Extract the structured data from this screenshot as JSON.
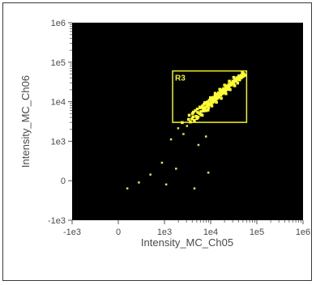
{
  "chart_data": {
    "type": "scatter",
    "title": "",
    "xlabel": "Intensity_MC_Ch05",
    "ylabel": "Intensity_MC_Ch06",
    "scale": "log",
    "x_range": [
      -1000,
      1000000
    ],
    "y_range": [
      -1000,
      1000000
    ],
    "x_ticks": [
      {
        "label": "-1e3",
        "value": -1000
      },
      {
        "label": "0",
        "value": 0
      },
      {
        "label": "1e3",
        "value": 1000
      },
      {
        "label": "1e4",
        "value": 10000
      },
      {
        "label": "1e5",
        "value": 100000
      },
      {
        "label": "1e6",
        "value": 1000000
      }
    ],
    "y_ticks": [
      {
        "label": "1e6",
        "value": 1000000
      },
      {
        "label": "1e5",
        "value": 100000
      },
      {
        "label": "1e4",
        "value": 10000
      },
      {
        "label": "1e3",
        "value": 1000
      },
      {
        "label": "0",
        "value": 0
      },
      {
        "label": "-1e3",
        "value": -1000
      }
    ],
    "colors": {
      "plot_background": "#000000",
      "points": "#ffff33",
      "outlier_points": "#d8e84a",
      "gate": "#f2f222"
    },
    "gate": {
      "name": "R3",
      "x": [
        1500,
        60000
      ],
      "y": [
        3000,
        60000
      ]
    },
    "points": [
      [
        200,
        -200
      ],
      [
        450,
        -50
      ],
      [
        700,
        150
      ],
      [
        950,
        450
      ],
      [
        1100,
        -100
      ],
      [
        1400,
        1100
      ],
      [
        1800,
        300
      ],
      [
        2000,
        2100
      ],
      [
        2400,
        3000
      ],
      [
        2600,
        1500
      ],
      [
        3100,
        2400
      ],
      [
        5500,
        900
      ],
      [
        8000,
        1300
      ],
      [
        4500,
        -200
      ],
      [
        9000,
        200
      ],
      [
        3300,
        3600
      ],
      [
        4100,
        4200
      ],
      [
        5200,
        5400
      ],
      [
        6100,
        5700
      ],
      [
        6800,
        6900
      ],
      [
        7600,
        7200
      ],
      [
        8400,
        8800
      ],
      [
        9100,
        8400
      ],
      [
        10000,
        9800
      ],
      [
        10800,
        11500
      ],
      [
        11900,
        11200
      ],
      [
        12700,
        13100
      ],
      [
        13900,
        12400
      ],
      [
        14800,
        15900
      ],
      [
        16000,
        15100
      ],
      [
        17200,
        17700
      ],
      [
        18300,
        16900
      ],
      [
        19500,
        19800
      ],
      [
        20600,
        19200
      ],
      [
        22000,
        22800
      ],
      [
        23400,
        21900
      ],
      [
        24800,
        24100
      ],
      [
        26300,
        27500
      ],
      [
        28100,
        26700
      ],
      [
        30000,
        30500
      ],
      [
        31500,
        29400
      ],
      [
        33500,
        34800
      ],
      [
        35700,
        33600
      ],
      [
        37900,
        38200
      ],
      [
        40200,
        41500
      ],
      [
        42800,
        40100
      ],
      [
        45500,
        46900
      ],
      [
        5000,
        3800
      ],
      [
        6500,
        4600
      ],
      [
        8700,
        6200
      ],
      [
        10500,
        7900
      ],
      [
        13200,
        9800
      ],
      [
        16800,
        12300
      ],
      [
        21200,
        16100
      ],
      [
        26100,
        20400
      ],
      [
        32800,
        25600
      ],
      [
        4200,
        5500
      ],
      [
        5800,
        7400
      ],
      [
        7400,
        9600
      ],
      [
        9800,
        12800
      ],
      [
        12400,
        16500
      ],
      [
        15600,
        20800
      ],
      [
        19800,
        26600
      ],
      [
        25100,
        33400
      ],
      [
        31200,
        41700
      ],
      [
        11200,
        10300
      ],
      [
        14600,
        13800
      ],
      [
        18900,
        18100
      ],
      [
        24200,
        23600
      ],
      [
        29400,
        28900
      ],
      [
        36100,
        36000
      ],
      [
        44300,
        44800
      ],
      [
        52000,
        51500
      ],
      [
        48000,
        55000
      ],
      [
        55000,
        47000
      ],
      [
        3600,
        3100
      ],
      [
        3900,
        3700
      ],
      [
        4400,
        3400
      ],
      [
        4800,
        4300
      ],
      [
        5300,
        4100
      ],
      [
        5700,
        5000
      ],
      [
        6200,
        4700
      ],
      [
        6900,
        5900
      ],
      [
        7300,
        6400
      ],
      [
        7900,
        6000
      ],
      [
        8200,
        7700
      ],
      [
        8900,
        7100
      ],
      [
        9500,
        9000
      ],
      [
        10200,
        8600
      ],
      [
        11000,
        9700
      ],
      [
        12000,
        10500
      ],
      [
        13000,
        11700
      ],
      [
        14100,
        12900
      ],
      [
        15200,
        13400
      ],
      [
        16400,
        14800
      ],
      [
        17700,
        16200
      ],
      [
        19100,
        17400
      ],
      [
        20300,
        18800
      ],
      [
        21800,
        20300
      ],
      [
        23000,
        21000
      ],
      [
        3400,
        4600
      ],
      [
        4000,
        5100
      ],
      [
        4600,
        6000
      ],
      [
        5100,
        6600
      ],
      [
        5900,
        7100
      ],
      [
        6600,
        8000
      ],
      [
        7100,
        8700
      ],
      [
        7800,
        9300
      ],
      [
        8500,
        10100
      ],
      [
        9300,
        11000
      ],
      [
        10100,
        12000
      ],
      [
        11300,
        13000
      ],
      [
        12300,
        14300
      ],
      [
        13500,
        15400
      ],
      [
        14700,
        17000
      ],
      [
        16100,
        18500
      ],
      [
        17500,
        20100
      ],
      [
        18800,
        21600
      ],
      [
        20900,
        23500
      ],
      [
        22600,
        25400
      ],
      [
        24500,
        27800
      ],
      [
        27000,
        30200
      ],
      [
        29800,
        33500
      ],
      [
        33000,
        37000
      ],
      [
        36500,
        40900
      ],
      [
        40500,
        45600
      ],
      [
        38000,
        30000
      ],
      [
        42000,
        36000
      ],
      [
        46000,
        41000
      ],
      [
        50000,
        44000
      ]
    ]
  }
}
